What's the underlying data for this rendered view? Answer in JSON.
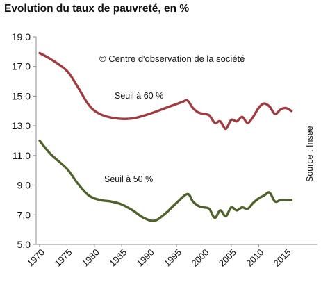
{
  "chart_data": {
    "type": "line",
    "title": "Evolution du taux de pauvreté, en %",
    "copyright": "© Centre d'observation de la  société",
    "source": "Source : Insee",
    "xlabel": "",
    "ylabel": "",
    "xlim": [
      1970,
      2016
    ],
    "ylim": [
      5,
      19
    ],
    "grid": false,
    "x_ticks": [
      1970,
      1975,
      1980,
      1985,
      1990,
      1995,
      2000,
      2005,
      2010,
      2015
    ],
    "x_tick_labels": [
      "1970",
      "1975",
      "1980",
      "1985",
      "1990",
      "1995",
      "2000",
      "2005",
      "2010",
      "2015"
    ],
    "y_ticks": [
      5,
      7,
      9,
      11,
      13,
      15,
      17,
      19
    ],
    "y_tick_labels": [
      "5,0",
      "7,0",
      "9,0",
      "11,0",
      "13,0",
      "15,0",
      "17,0",
      "19,0"
    ],
    "series": [
      {
        "name": "Seuil à 60 %",
        "color": "#a03c3f",
        "x": [
          1970,
          1972,
          1975,
          1977,
          1979,
          1981,
          1984,
          1987,
          1990,
          1993,
          1996,
          1997,
          1998,
          1999,
          2000,
          2001,
          2002,
          2003,
          2004,
          2005,
          2006,
          2007,
          2008,
          2009,
          2010,
          2011,
          2012,
          2013,
          2014,
          2015,
          2016
        ],
        "values": [
          17.9,
          17.5,
          16.7,
          15.6,
          14.4,
          13.8,
          13.5,
          13.5,
          13.8,
          14.2,
          14.6,
          14.7,
          14.2,
          13.9,
          13.8,
          13.7,
          13.2,
          13.3,
          12.8,
          13.4,
          13.3,
          13.6,
          13.2,
          13.6,
          14.2,
          14.5,
          14.3,
          13.8,
          14.1,
          14.2,
          14.0
        ]
      },
      {
        "name": "Seuil à 50 %",
        "color": "#4f6229",
        "x": [
          1970,
          1972,
          1975,
          1977,
          1979,
          1981,
          1983,
          1985,
          1987,
          1989,
          1991,
          1993,
          1995,
          1997,
          1998,
          1999,
          2000,
          2001,
          2002,
          2003,
          2004,
          2005,
          2006,
          2007,
          2008,
          2009,
          2010,
          2011,
          2012,
          2013,
          2014,
          2015,
          2016
        ],
        "values": [
          12.0,
          11.1,
          10.1,
          9.1,
          8.3,
          8.0,
          7.9,
          7.7,
          7.3,
          6.8,
          6.6,
          7.1,
          7.8,
          8.4,
          7.9,
          7.6,
          7.5,
          7.4,
          6.8,
          7.3,
          6.9,
          7.5,
          7.3,
          7.5,
          7.4,
          7.8,
          8.1,
          8.3,
          8.5,
          7.9,
          8.0,
          8.0,
          8.0
        ]
      }
    ]
  }
}
